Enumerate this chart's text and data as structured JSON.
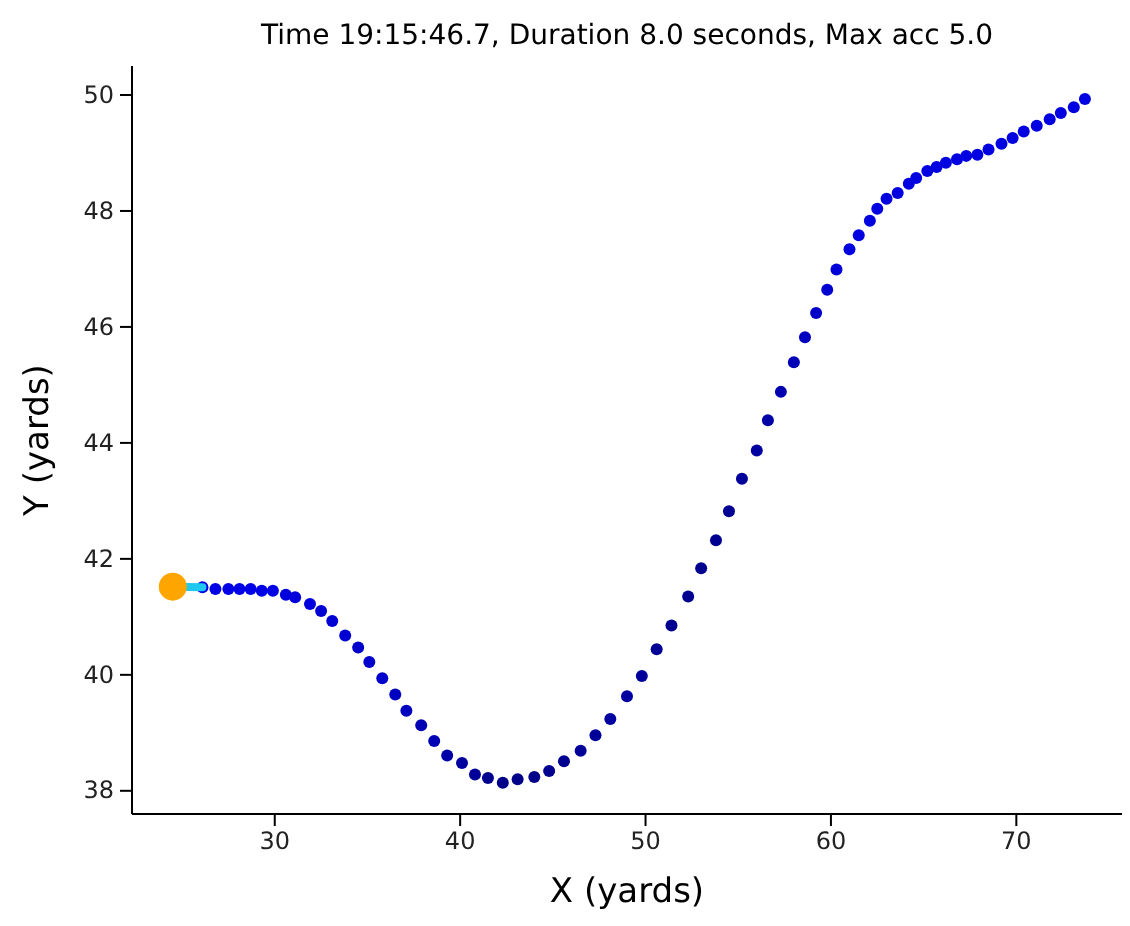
{
  "chart_data": {
    "type": "scatter",
    "title": "Time 19:15:46.7, Duration 8.0 seconds, Max acc 5.0",
    "xlabel": "X (yards)",
    "ylabel": "Y (yards)",
    "xlim": [
      22.3,
      75.7
    ],
    "ylim": [
      37.6,
      50.5
    ],
    "xticks": [
      30,
      40,
      50,
      60,
      70
    ],
    "yticks": [
      38,
      40,
      42,
      44,
      46,
      48,
      50
    ],
    "grid": false,
    "marker": "circle",
    "series": [
      {
        "x": [
          26.1,
          26.8,
          27.5,
          28.1,
          28.7,
          29.3,
          29.9,
          30.6,
          31.1,
          31.9,
          32.5,
          33.1,
          33.8,
          34.5,
          35.1,
          35.8,
          36.5,
          37.1,
          37.9,
          38.6,
          39.3,
          40.1,
          40.8,
          41.5,
          42.3,
          43.1,
          44.0,
          44.8,
          45.6,
          46.5,
          47.3,
          48.1,
          49.0,
          49.8,
          50.6,
          51.4,
          52.3,
          53.0,
          53.8,
          54.5,
          55.2,
          56.0,
          56.6,
          57.3,
          58.0,
          58.6,
          59.2,
          59.8,
          60.3,
          61.0,
          61.5,
          62.1,
          62.5,
          63.0,
          63.6,
          64.2,
          64.6,
          65.2,
          65.7,
          66.2,
          66.8,
          67.3,
          67.9,
          68.5,
          69.2,
          69.8,
          70.4,
          71.1,
          71.8,
          72.4,
          73.1,
          73.7
        ],
        "values": [
          41.51,
          41.48,
          41.48,
          41.48,
          41.48,
          41.45,
          41.45,
          41.38,
          41.34,
          41.22,
          41.1,
          40.93,
          40.68,
          40.47,
          40.22,
          39.94,
          39.66,
          39.38,
          39.13,
          38.86,
          38.61,
          38.48,
          38.28,
          38.22,
          38.14,
          38.2,
          38.24,
          38.34,
          38.51,
          38.69,
          38.96,
          39.24,
          39.63,
          39.98,
          40.44,
          40.85,
          41.35,
          41.84,
          42.32,
          42.82,
          43.38,
          43.87,
          44.39,
          44.88,
          45.39,
          45.82,
          46.24,
          46.64,
          46.99,
          47.34,
          47.58,
          47.83,
          48.04,
          48.21,
          48.31,
          48.47,
          48.57,
          48.69,
          48.76,
          48.83,
          48.89,
          48.95,
          48.97,
          49.06,
          49.16,
          49.26,
          49.37,
          49.47,
          49.58,
          49.69,
          49.79,
          49.93
        ],
        "colors": [
          "#0000e6",
          "#0000e6",
          "#0000e6",
          "#0000e6",
          "#0000e6",
          "#0000e6",
          "#0000e6",
          "#0000dd",
          "#0000dd",
          "#0000dd",
          "#0000d5",
          "#0000d5",
          "#0000d5",
          "#0000cc",
          "#0000cc",
          "#0000cc",
          "#0000c0",
          "#0000c0",
          "#0000b5",
          "#0000b5",
          "#0000a8",
          "#0000a0",
          "#000098",
          "#000090",
          "#000088",
          "#000088",
          "#000088",
          "#000090",
          "#000090",
          "#000098",
          "#000098",
          "#0000a0",
          "#0000a0",
          "#00009a",
          "#000095",
          "#000090",
          "#000090",
          "#000090",
          "#000090",
          "#000095",
          "#00009a",
          "#0000a0",
          "#0000a8",
          "#0000b0",
          "#0000b8",
          "#0000c0",
          "#0000c8",
          "#0000d0",
          "#0000d8",
          "#0000e0",
          "#0000e0",
          "#0000e0",
          "#0000e0",
          "#0000e0",
          "#0000e0",
          "#0000e0",
          "#0000e0",
          "#0000e0",
          "#0000e0",
          "#0000e0",
          "#0000e0",
          "#0000e0",
          "#0000e0",
          "#0000e0",
          "#0000e0",
          "#0000e0",
          "#0000e0",
          "#0000e0",
          "#0000e0",
          "#0000e0",
          "#0000e0",
          "#0000e0"
        ]
      },
      {
        "type": "line",
        "marker": "none",
        "color": "#1ec8f0",
        "x": [
          24.5,
          26.1
        ],
        "values": [
          41.52,
          41.51
        ]
      },
      {
        "type": "scatter",
        "color": "#ffa500",
        "x": [
          24.5
        ],
        "values": [
          41.52
        ]
      }
    ]
  }
}
